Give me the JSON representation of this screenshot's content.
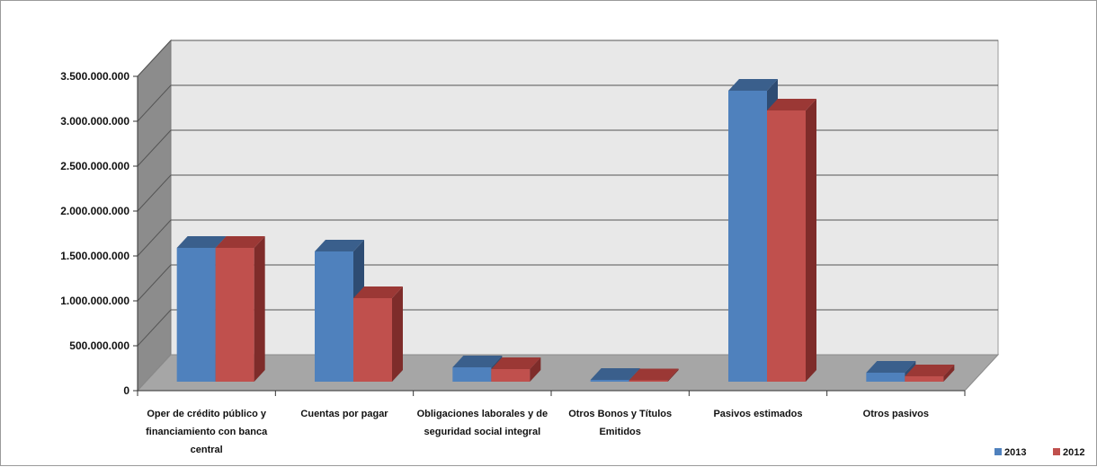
{
  "chart_data": {
    "type": "bar",
    "title": "",
    "xlabel": "",
    "ylabel": "",
    "ylim": [
      0,
      3500000000
    ],
    "yticks": [
      0,
      500000000,
      1000000000,
      1500000000,
      2000000000,
      2500000000,
      3000000000,
      3500000000
    ],
    "ytick_labels": [
      "0",
      "500.000.000",
      "1.000.000.000",
      "1.500.000.000",
      "2.000.000.000",
      "2.500.000.000",
      "3.000.000.000",
      "3.500.000.000"
    ],
    "categories": [
      [
        "Oper de crédito público y",
        "financiamiento con banca",
        "central"
      ],
      [
        "Cuentas por pagar"
      ],
      [
        "Obligaciones laborales y de",
        "seguridad social integral"
      ],
      [
        "Otros Bonos y Títulos",
        "Emitidos"
      ],
      [
        "Pasivos estimados"
      ],
      [
        "Otros pasivos"
      ]
    ],
    "series": [
      {
        "name": "2013",
        "color": "#4F81BD",
        "values": [
          1490000000,
          1450000000,
          160000000,
          20000000,
          3240000000,
          100000000
        ]
      },
      {
        "name": "2012",
        "color": "#C0504D",
        "values": [
          1490000000,
          930000000,
          140000000,
          15000000,
          3020000000,
          60000000
        ]
      }
    ],
    "grid": true,
    "legend": "bottom-right",
    "style": "3d-clustered-column"
  }
}
